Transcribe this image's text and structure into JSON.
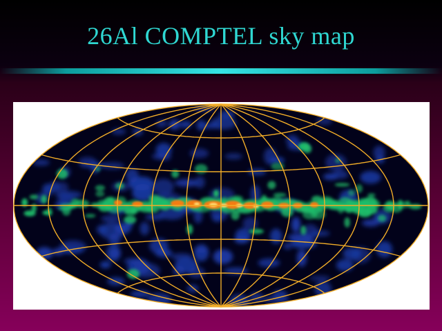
{
  "slide": {
    "title": "26Al COMPTEL sky map"
  },
  "sky_map": {
    "projection": "Aitoff (all-sky)",
    "background_color": "#ffffff",
    "sky_color": "#02021a",
    "graticule_color": "#f2ad28",
    "emission_colors": {
      "faint": "#1b3aa6",
      "moderate": "#1fbe6a",
      "bright": "#ff7a10",
      "peak": "#ffe07a"
    },
    "title_color": "#2fd7d2"
  }
}
